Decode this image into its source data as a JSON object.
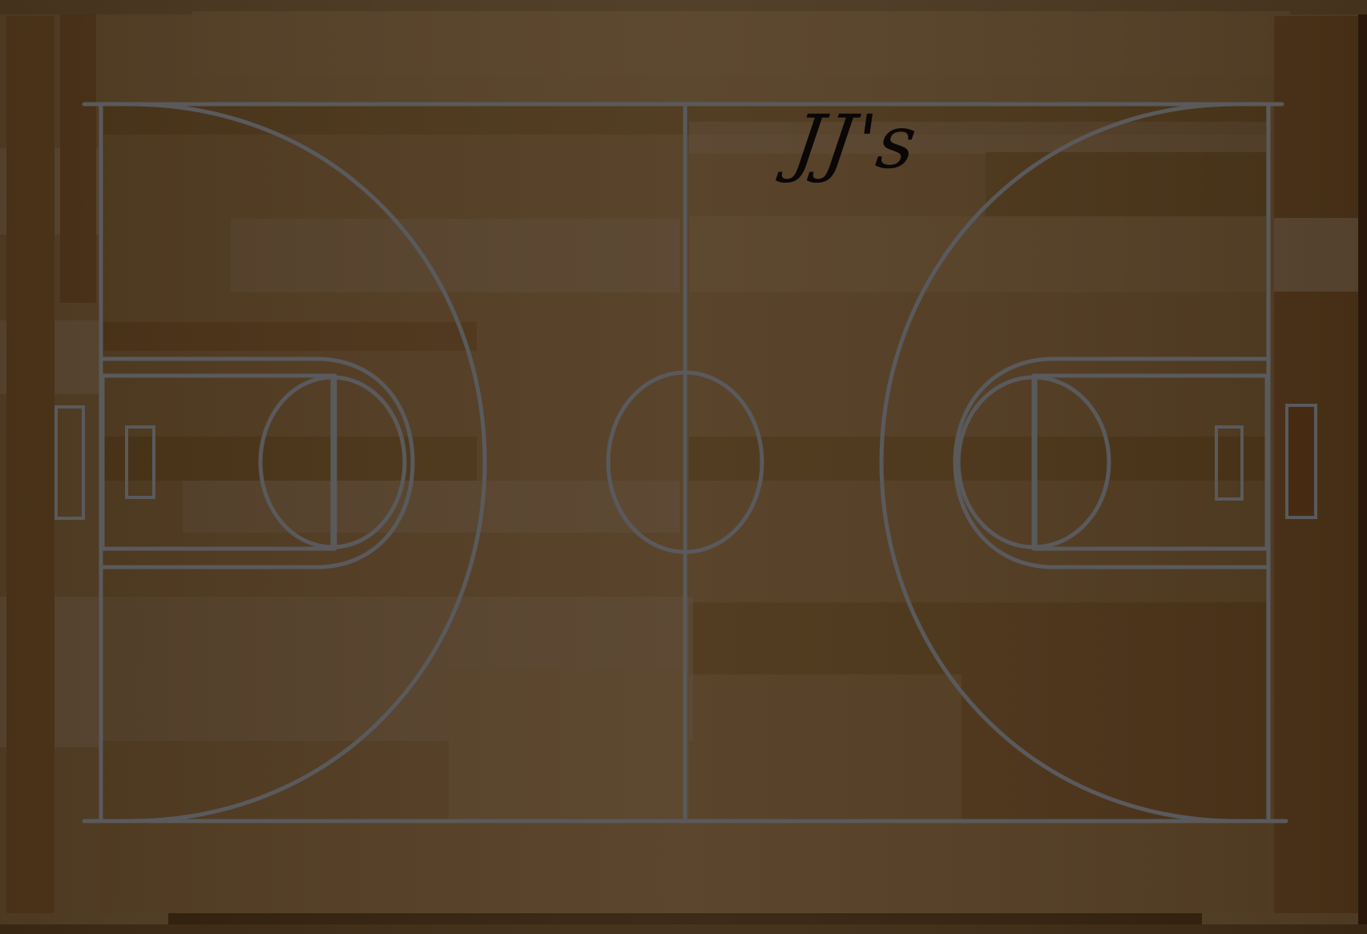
{
  "court": {
    "title": "JJ's"
  },
  "colors": {
    "wood_base": "#543e24",
    "wood_dark": "#4b3217",
    "wood_light": "#5a4631",
    "frame_dark": "#3d2a14",
    "line": "#5a5a5c",
    "title_ink": "#0a0705"
  },
  "icons": {
    "left_basket": "hoop-marker-icon",
    "right_basket": "hoop-marker-icon"
  }
}
